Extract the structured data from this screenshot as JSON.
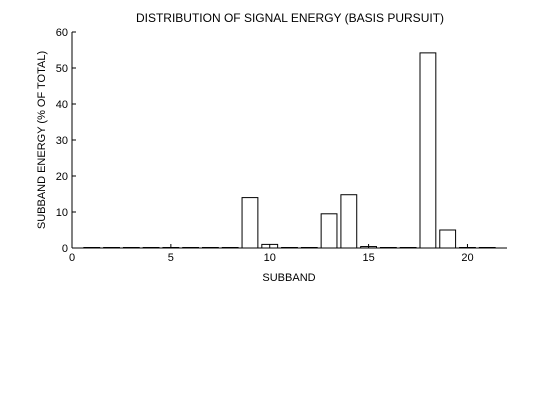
{
  "chart_data": {
    "type": "bar",
    "title": "DISTRIBUTION OF SIGNAL ENERGY (BASIS PURSUIT)",
    "xlabel": "SUBBAND",
    "ylabel": "SUBBAND ENERGY (% OF TOTAL)",
    "categories": [
      1,
      2,
      3,
      4,
      5,
      6,
      7,
      8,
      9,
      10,
      11,
      12,
      13,
      14,
      15,
      16,
      17,
      18,
      19,
      20,
      21
    ],
    "values": [
      0,
      0,
      0,
      0,
      0,
      0,
      0,
      0,
      14,
      1,
      0,
      0,
      9.5,
      14.8,
      0.4,
      0,
      0,
      54.2,
      5,
      0,
      0
    ],
    "xlim": [
      0,
      22
    ],
    "ylim": [
      0,
      60
    ],
    "xticks": [
      0,
      5,
      10,
      15,
      20
    ],
    "yticks": [
      0,
      10,
      20,
      30,
      40,
      50,
      60
    ],
    "grid": false,
    "bar_color": "#ffffff",
    "edge_color": "#000000"
  }
}
